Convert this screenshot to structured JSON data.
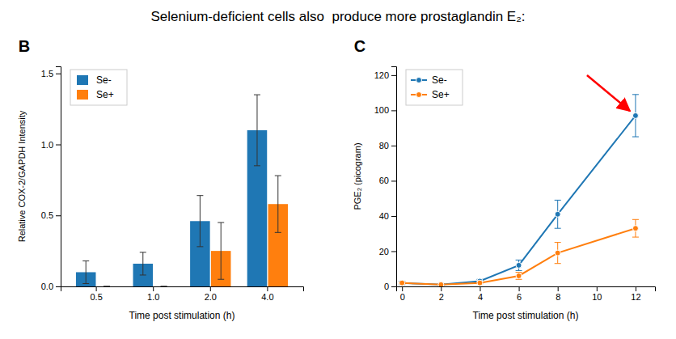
{
  "chart_data": [
    {
      "type": "bar",
      "title": "Selenium-deficient cells also  produce more prostaglandin E₂:",
      "subtitle": "B",
      "categories": [
        "0.5",
        "1.0",
        "2.0",
        "4.0"
      ],
      "series": [
        {
          "name": "Se-",
          "values": [
            0.1,
            0.16,
            0.46,
            1.1
          ],
          "errors": [
            0.08,
            0.08,
            0.18,
            0.25
          ]
        },
        {
          "name": "Se+",
          "values": [
            0.0,
            0.0,
            0.25,
            0.58
          ],
          "errors": [
            0.0,
            0.0,
            0.2,
            0.2
          ]
        }
      ],
      "ylim": [
        0,
        1.55
      ],
      "yticks": [
        {
          "value": 0.0,
          "label": "0.0"
        },
        0.5,
        {
          "value": 1.0,
          "label": "1.0"
        },
        1.5
      ],
      "xlabel": "Time post stimulation (h)",
      "ylabel": "Relative COX-2/GAPDH Intensity",
      "legend": "upper left"
    },
    {
      "type": "line",
      "subtitle": "C",
      "x": [
        0,
        2,
        4,
        6,
        8,
        12
      ],
      "series": [
        {
          "name": "Se-",
          "marker": "circle",
          "values": [
            2,
            1,
            3,
            12,
            41,
            97
          ],
          "errors": [
            1,
            0.5,
            1,
            3,
            8,
            12
          ]
        },
        {
          "name": "Se+",
          "marker": "circle",
          "values": [
            2,
            1,
            2,
            6,
            19,
            33
          ],
          "errors": [
            0.5,
            0.3,
            0.5,
            2,
            6,
            5
          ]
        }
      ],
      "xlim": [
        -0.3,
        13
      ],
      "xticks": [
        0,
        2,
        4,
        6,
        8,
        10,
        12
      ],
      "ylim": [
        0,
        125
      ],
      "yticks": [
        0,
        20,
        40,
        60,
        80,
        100,
        120
      ],
      "xlabel": "Time post stimulation (h)",
      "ylabel": "PGE₂ (picogram)",
      "legend": "upper left",
      "annotations": [
        {
          "type": "arrow",
          "color": "#ff0000",
          "x": 12,
          "y": 97
        }
      ]
    }
  ]
}
